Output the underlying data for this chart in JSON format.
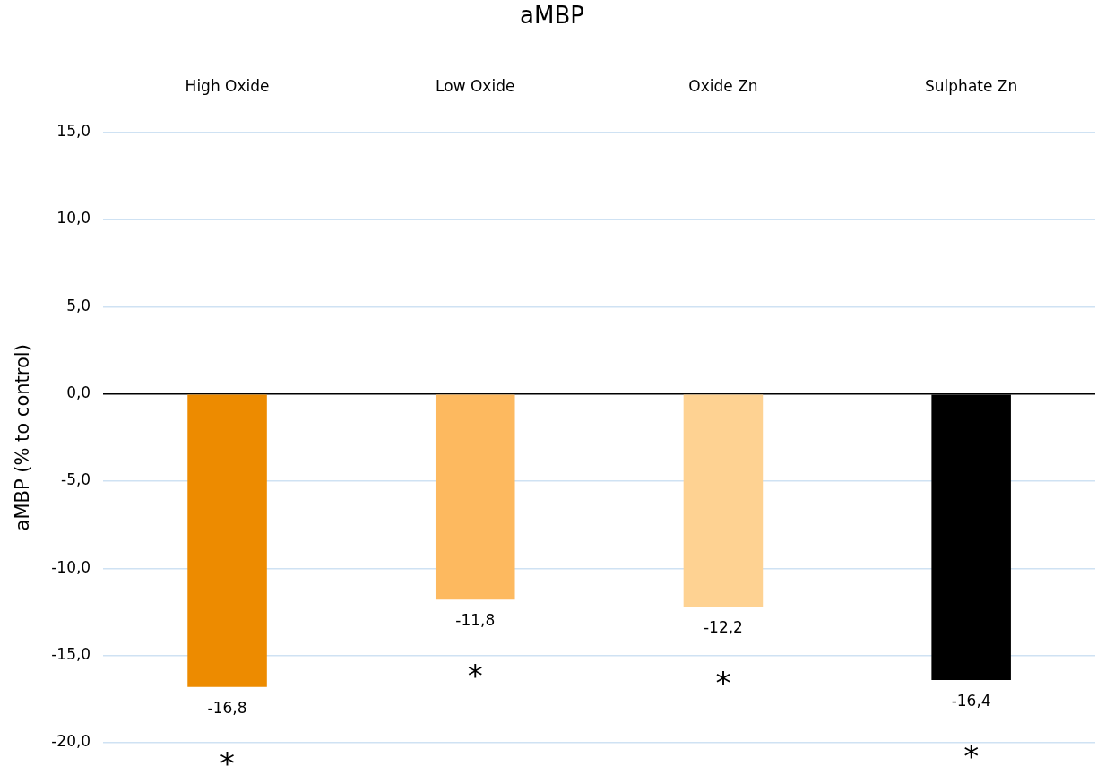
{
  "chart_data": {
    "type": "bar",
    "title": "aMBP",
    "ylabel": "aMBP (% to control)",
    "categories": [
      "High Oxide",
      "Low Oxide",
      "Oxide Zn",
      "Sulphate Zn"
    ],
    "values": [
      -16.8,
      -11.8,
      -12.2,
      -16.4
    ],
    "colors": [
      "#ed8b00",
      "#fdb95f",
      "#fed292",
      "#000000"
    ],
    "value_labels": [
      "-16,8",
      "-11,8",
      "-12,2",
      "-16,4"
    ],
    "ylim": [
      -20,
      15
    ],
    "yticks": [
      {
        "value": -20,
        "label": "-20,0"
      },
      {
        "value": -15,
        "label": "-15,0"
      },
      {
        "value": -10,
        "label": "-10,0"
      },
      {
        "value": -5,
        "label": "-5,0"
      },
      {
        "value": 0,
        "label": "0,0"
      },
      {
        "value": 5,
        "label": "5,0"
      },
      {
        "value": 10,
        "label": "10,0"
      },
      {
        "value": 15,
        "label": "15,0"
      }
    ],
    "grid": "y",
    "legend": false,
    "annotations": [
      "*",
      "*",
      "*",
      "*"
    ]
  }
}
